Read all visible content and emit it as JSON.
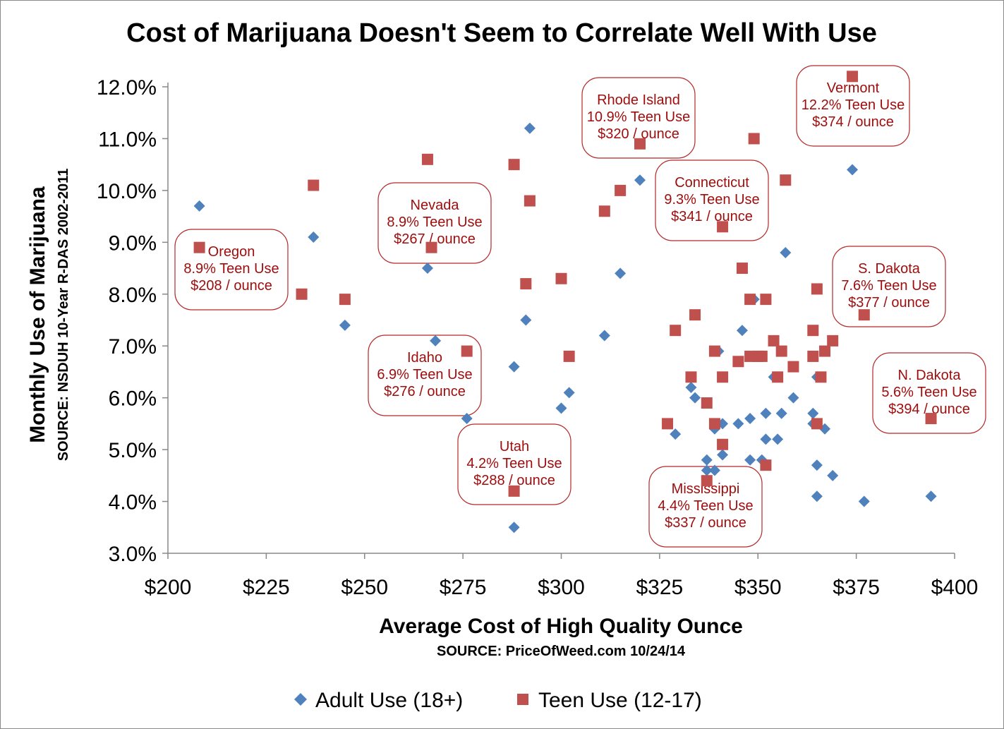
{
  "chart_data": {
    "type": "scatter",
    "title": "Cost of Marijuana Doesn't Seem to Correlate Well With Use",
    "xlabel": "Average Cost of High Quality Ounce",
    "xlabel_source": "SOURCE: PriceOfWeed.com 10/24/14",
    "ylabel": "Monthly Use of Marijuana",
    "ylabel_source": "SOURCE: NSDUH 10-Year R-DAS 2002-2011",
    "xlim": [
      200,
      400
    ],
    "ylim": [
      3.0,
      12.0
    ],
    "x_ticks": [
      200,
      225,
      250,
      275,
      300,
      325,
      350,
      375,
      400
    ],
    "x_tick_labels": [
      "$200",
      "$225",
      "$250",
      "$275",
      "$300",
      "$325",
      "$350",
      "$375",
      "$400"
    ],
    "y_ticks": [
      3,
      4,
      5,
      6,
      7,
      8,
      9,
      10,
      11,
      12
    ],
    "y_tick_labels": [
      "3.0%",
      "4.0%",
      "5.0%",
      "6.0%",
      "7.0%",
      "8.0%",
      "9.0%",
      "10.0%",
      "11.0%",
      "12.0%"
    ],
    "legend_position": "bottom",
    "series": [
      {
        "name": "Adult Use (18+)",
        "color": "#4f81bd",
        "marker": "diamond",
        "points": [
          [
            208,
            9.7
          ],
          [
            237,
            9.1
          ],
          [
            245,
            7.4
          ],
          [
            266,
            8.5
          ],
          [
            268,
            7.1
          ],
          [
            276,
            5.6
          ],
          [
            288,
            3.5
          ],
          [
            288,
            6.6
          ],
          [
            291,
            7.5
          ],
          [
            292,
            11.2
          ],
          [
            300,
            5.8
          ],
          [
            302,
            6.1
          ],
          [
            311,
            7.2
          ],
          [
            315,
            8.4
          ],
          [
            320,
            10.2
          ],
          [
            329,
            5.3
          ],
          [
            333,
            6.2
          ],
          [
            334,
            6.0
          ],
          [
            337,
            4.8
          ],
          [
            337,
            4.6
          ],
          [
            339,
            4.6
          ],
          [
            339,
            5.4
          ],
          [
            340,
            6.9
          ],
          [
            341,
            5.5
          ],
          [
            341,
            4.9
          ],
          [
            345,
            5.5
          ],
          [
            346,
            7.3
          ],
          [
            348,
            4.8
          ],
          [
            348,
            5.6
          ],
          [
            349,
            7.9
          ],
          [
            351,
            4.8
          ],
          [
            352,
            5.7
          ],
          [
            352,
            5.2
          ],
          [
            354,
            6.4
          ],
          [
            355,
            5.2
          ],
          [
            356,
            5.7
          ],
          [
            357,
            8.8
          ],
          [
            359,
            6.0
          ],
          [
            364,
            5.5
          ],
          [
            364,
            5.7
          ],
          [
            365,
            6.4
          ],
          [
            365,
            4.7
          ],
          [
            365,
            4.1
          ],
          [
            367,
            5.4
          ],
          [
            369,
            4.5
          ],
          [
            374,
            10.4
          ],
          [
            377,
            4.0
          ],
          [
            394,
            4.1
          ]
        ]
      },
      {
        "name": "Teen Use (12-17)",
        "color": "#c0504d",
        "marker": "square",
        "points": [
          [
            208,
            8.9
          ],
          [
            234,
            8.0
          ],
          [
            237,
            10.1
          ],
          [
            245,
            7.9
          ],
          [
            266,
            10.6
          ],
          [
            267,
            8.9
          ],
          [
            276,
            6.9
          ],
          [
            288,
            4.2
          ],
          [
            288,
            10.5
          ],
          [
            291,
            8.2
          ],
          [
            292,
            9.8
          ],
          [
            300,
            8.3
          ],
          [
            302,
            6.8
          ],
          [
            311,
            9.6
          ],
          [
            315,
            10.0
          ],
          [
            320,
            10.9
          ],
          [
            327,
            5.5
          ],
          [
            329,
            7.3
          ],
          [
            333,
            6.4
          ],
          [
            334,
            7.6
          ],
          [
            337,
            5.9
          ],
          [
            337,
            4.4
          ],
          [
            339,
            6.9
          ],
          [
            339,
            5.5
          ],
          [
            341,
            9.3
          ],
          [
            341,
            6.4
          ],
          [
            341,
            5.1
          ],
          [
            345,
            6.7
          ],
          [
            346,
            8.5
          ],
          [
            348,
            7.9
          ],
          [
            348,
            6.8
          ],
          [
            349,
            11.0
          ],
          [
            350,
            6.8
          ],
          [
            351,
            6.8
          ],
          [
            352,
            7.9
          ],
          [
            352,
            4.7
          ],
          [
            354,
            7.1
          ],
          [
            355,
            6.4
          ],
          [
            356,
            6.9
          ],
          [
            357,
            10.2
          ],
          [
            359,
            6.6
          ],
          [
            364,
            7.3
          ],
          [
            364,
            6.8
          ],
          [
            365,
            8.1
          ],
          [
            365,
            5.5
          ],
          [
            366,
            6.4
          ],
          [
            367,
            6.9
          ],
          [
            369,
            7.1
          ],
          [
            374,
            12.2
          ],
          [
            377,
            7.6
          ],
          [
            394,
            5.6
          ]
        ]
      }
    ],
    "annotations": [
      {
        "id": "oregon",
        "lines": [
          "Oregon",
          "8.9% Teen Use",
          "$208 / ounce"
        ]
      },
      {
        "id": "nevada",
        "lines": [
          "Nevada",
          "8.9% Teen Use",
          "$267 / ounce"
        ]
      },
      {
        "id": "idaho",
        "lines": [
          "Idaho",
          "6.9% Teen Use",
          "$276 / ounce"
        ]
      },
      {
        "id": "utah",
        "lines": [
          "Utah",
          "4.2% Teen Use",
          "$288 / ounce"
        ]
      },
      {
        "id": "rhode-island",
        "lines": [
          "Rhode Island",
          "10.9% Teen Use",
          "$320 / ounce"
        ]
      },
      {
        "id": "connecticut",
        "lines": [
          "Connecticut",
          "9.3% Teen Use",
          "$341 / ounce"
        ]
      },
      {
        "id": "mississippi",
        "lines": [
          "Mississippi",
          "4.4% Teen Use",
          "$337 / ounce"
        ]
      },
      {
        "id": "vermont",
        "lines": [
          "Vermont",
          "12.2% Teen Use",
          "$374 / ounce"
        ]
      },
      {
        "id": "south-dakota",
        "lines": [
          "S. Dakota",
          "7.6% Teen Use",
          "$377 / ounce"
        ]
      },
      {
        "id": "north-dakota",
        "lines": [
          "N. Dakota",
          "5.6% Teen Use",
          "$394 / ounce"
        ]
      }
    ]
  }
}
